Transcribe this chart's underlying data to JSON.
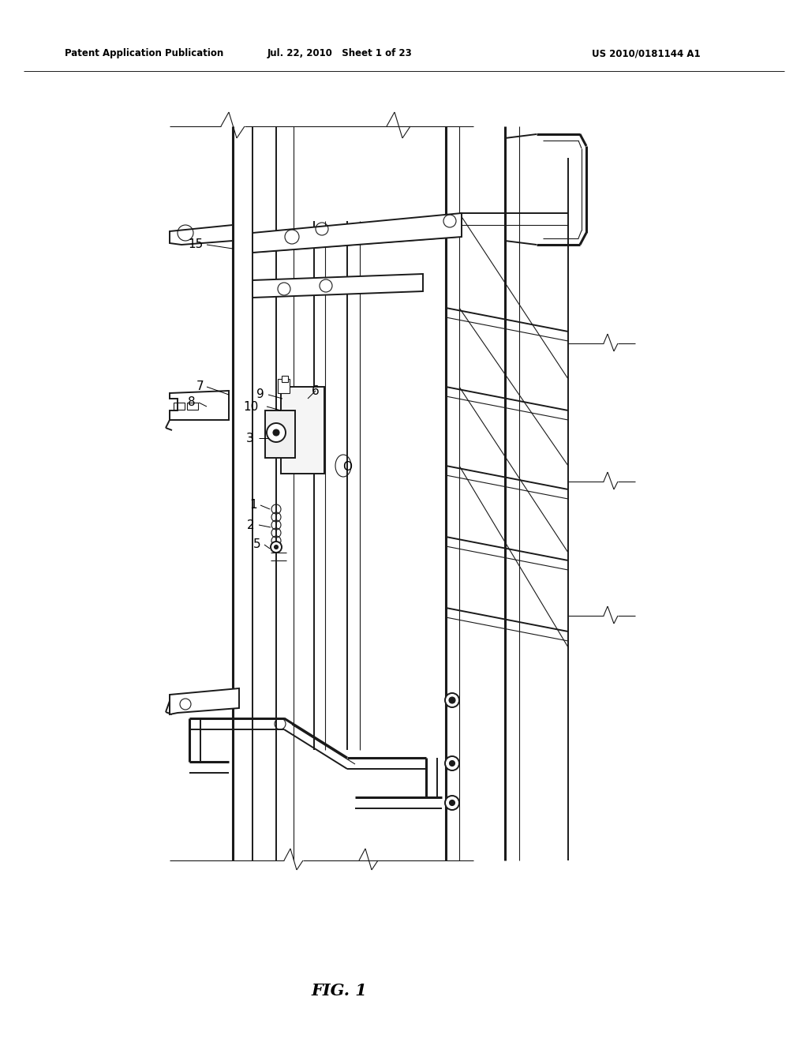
{
  "title_left": "Patent Application Publication",
  "title_center": "Jul. 22, 2010   Sheet 1 of 23",
  "title_right": "US 2010/0181144 A1",
  "fig_label": "FIG. 1",
  "bg_color": "#ffffff",
  "line_color": "#1a1a1a",
  "lw_heavy": 2.2,
  "lw_med": 1.4,
  "lw_thin": 0.8,
  "lw_vthin": 0.5
}
